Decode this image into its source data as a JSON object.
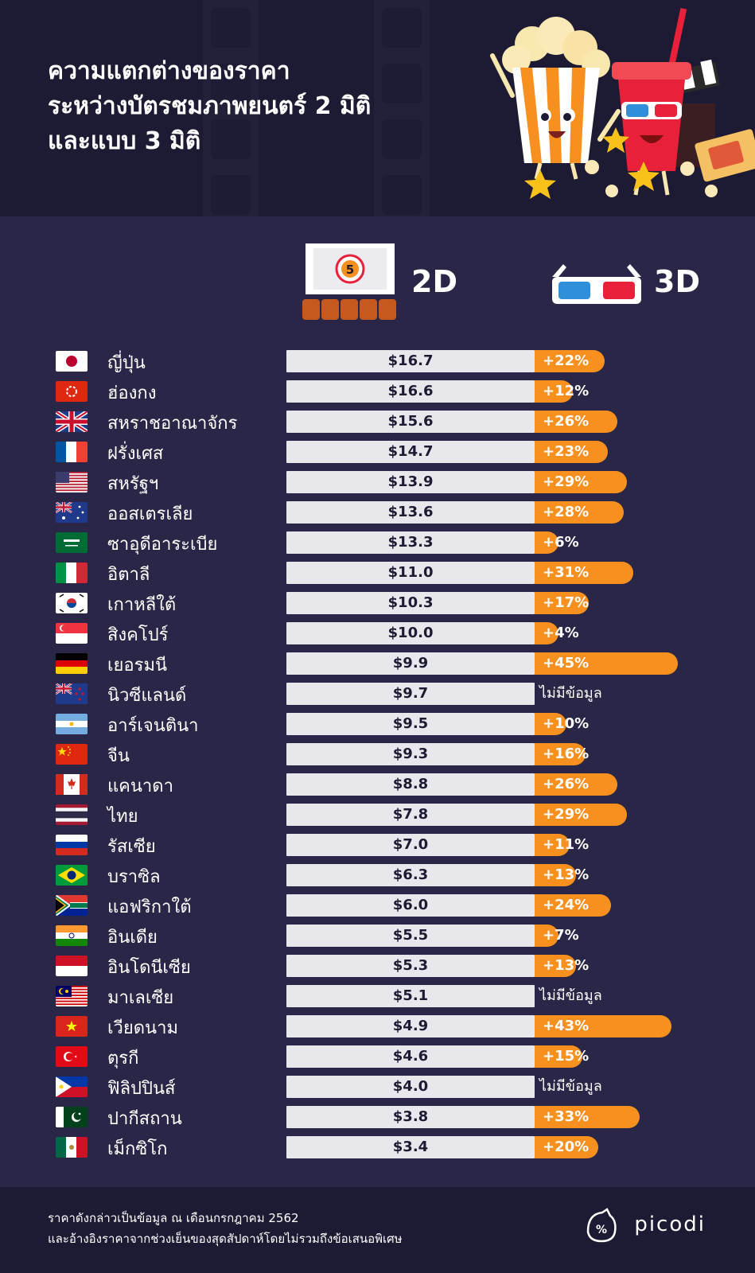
{
  "header": {
    "title_lines": [
      "ความแตกต่างของราคา",
      "ระหว่างบัตรชมภาพยนตร์ 2 มิติ",
      "และแบบ 3 มิติ"
    ]
  },
  "legend": {
    "label_2d": "2D",
    "label_3d": "3D",
    "icon_2d": "cinema-screen-icon",
    "icon_3d": "3d-glasses-icon"
  },
  "colors": {
    "background": "#2a2647",
    "header_bg": "#1d1b33",
    "bar_2d": "#e8e8ec",
    "bar_3d": "#f7901e"
  },
  "chart_data": {
    "type": "bar",
    "orientation": "horizontal",
    "value_unit": "USD",
    "no_data_label": "ไม่มีข้อมูล",
    "categories": [
      "ญี่ปุ่น",
      "ฮ่องกง",
      "สหราชอาณาจักร",
      "ฝรั่งเศส",
      "สหรัฐฯ",
      "ออสเตรเลีย",
      "ซาอุดีอาระเบีย",
      "อิตาลี",
      "เกาหลีใต้",
      "สิงคโปร์",
      "เยอรมนี",
      "นิวซีแลนด์",
      "อาร์เจนตินา",
      "จีน",
      "แคนาดา",
      "ไทย",
      "รัสเซีย",
      "บราซิล",
      "แอฟริกาใต้",
      "อินเดีย",
      "อินโดนีเซีย",
      "มาเลเซีย",
      "เวียดนาม",
      "ตุรกี",
      "ฟิลิปปินส์",
      "ปากีสถาน",
      "เม็กซิโก"
    ],
    "series": [
      {
        "name": "2D",
        "values": [
          16.7,
          16.6,
          15.6,
          14.7,
          13.9,
          13.6,
          13.3,
          11.0,
          10.3,
          10.0,
          9.9,
          9.7,
          9.5,
          9.3,
          8.8,
          7.8,
          7.0,
          6.3,
          6.0,
          5.5,
          5.3,
          5.1,
          4.9,
          4.6,
          4.0,
          3.8,
          3.4
        ],
        "labels": [
          "$16.7",
          "$16.6",
          "$15.6",
          "$14.7",
          "$13.9",
          "$13.6",
          "$13.3",
          "$11.0",
          "$10.3",
          "$10.0",
          "$9.9",
          "$9.7",
          "$9.5",
          "$9.3",
          "$8.8",
          "$7.8",
          "$7.0",
          "$6.3",
          "$6.0",
          "$5.5",
          "$5.3",
          "$5.1",
          "$4.9",
          "$4.6",
          "$4.0",
          "$3.8",
          "$3.4"
        ]
      },
      {
        "name": "3D",
        "values": [
          22,
          12,
          26,
          23,
          29,
          28,
          6,
          31,
          17,
          4,
          45,
          null,
          10,
          16,
          26,
          29,
          11,
          13,
          24,
          7,
          13,
          null,
          43,
          15,
          null,
          33,
          20
        ],
        "labels": [
          "+22%",
          "+12%",
          "+26%",
          "+23%",
          "+29%",
          "+28%",
          "+6%",
          "+31%",
          "+17%",
          "+4%",
          "+45%",
          "ไม่มีข้อมูล",
          "+10%",
          "+16%",
          "+26%",
          "+29%",
          "+11%",
          "+13%",
          "+24%",
          "+7%",
          "+13%",
          "ไม่มีข้อมูล",
          "+43%",
          "+15%",
          "ไม่มีข้อมูล",
          "+33%",
          "+20%"
        ]
      }
    ],
    "flags": [
      "jp",
      "hk",
      "gb",
      "fr",
      "us",
      "au",
      "sa",
      "it",
      "kr",
      "sg",
      "de",
      "nz",
      "ar",
      "cn",
      "ca",
      "th",
      "ru",
      "br",
      "za",
      "in",
      "id",
      "my",
      "vn",
      "tr",
      "ph",
      "pk",
      "mx"
    ]
  },
  "footer": {
    "note_lines": [
      "ราคาดังกล่าวเป็นข้อมูล ณ เดือนกรกฎาคม 2562",
      "และอ้างอิงราคาจากช่วงเย็นของสุดสัปดาห์โดยไม่รวมถึงข้อเสนอพิเศษ"
    ],
    "brand": "picodi"
  }
}
